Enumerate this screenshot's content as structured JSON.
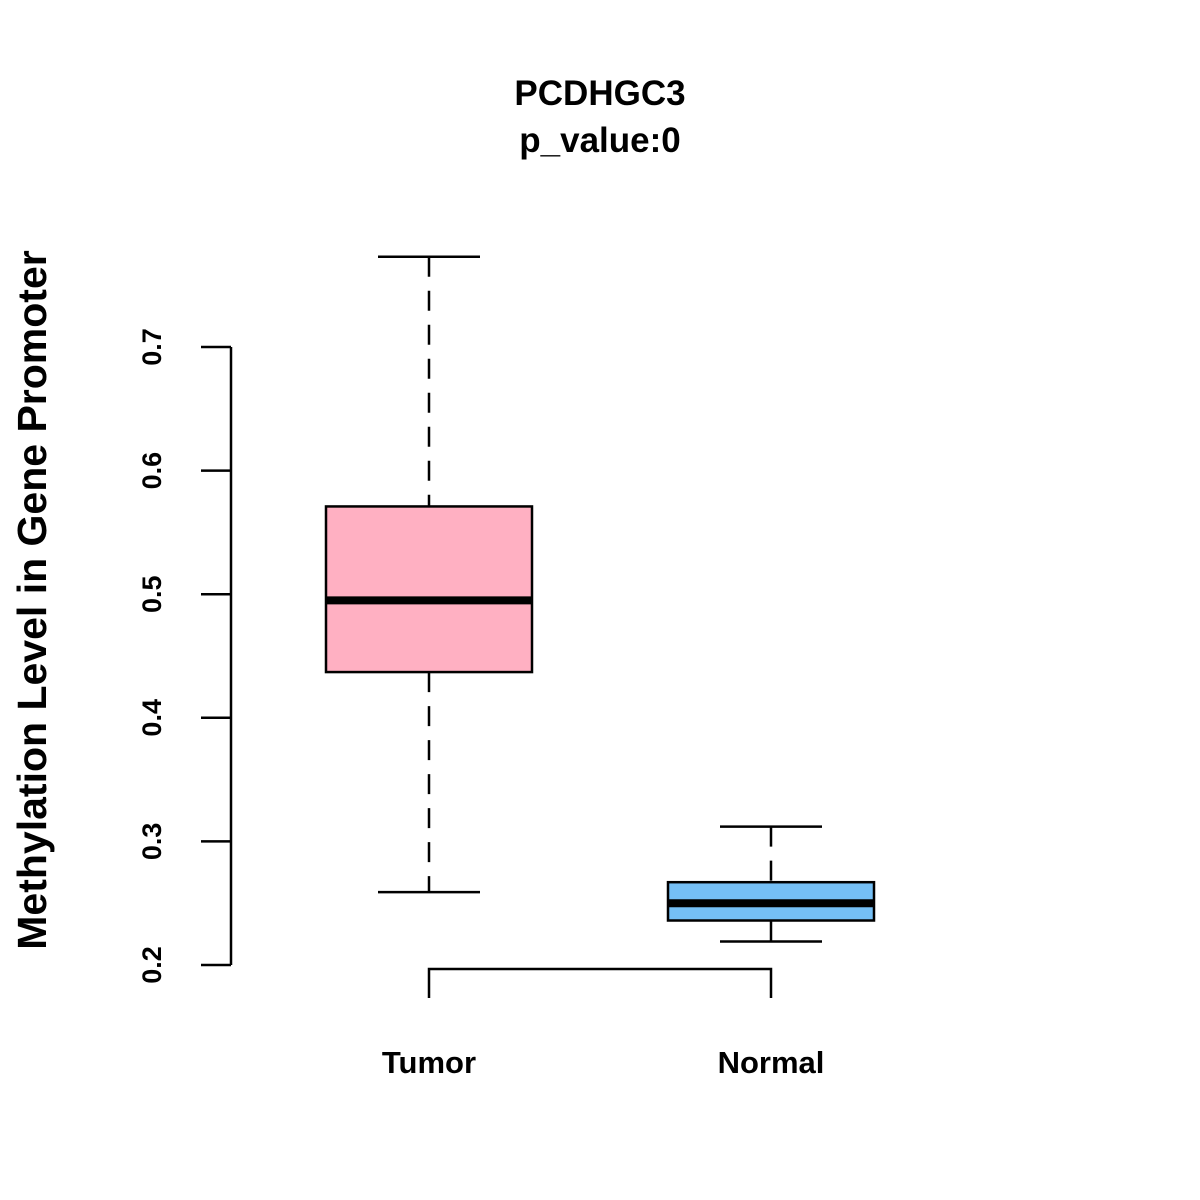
{
  "chart_data": {
    "type": "box",
    "title": "PCDHGC3",
    "subtitle": "p_value:0",
    "xlabel": "",
    "ylabel": "Methylation Level in Gene Promoter",
    "ylim": [
      0.2,
      0.7
    ],
    "yticks": [
      0.2,
      0.3,
      0.4,
      0.5,
      0.6,
      0.7
    ],
    "ytick_labels": [
      "0.2",
      "0.3",
      "0.4",
      "0.5",
      "0.6",
      "0.7"
    ],
    "grid": false,
    "categories": [
      "Tumor",
      "Normal"
    ],
    "series": [
      {
        "name": "Tumor",
        "color": "#FFB0C2",
        "whisker_low": 0.259,
        "q1": 0.437,
        "median": 0.495,
        "q3": 0.571,
        "whisker_high": 0.773
      },
      {
        "name": "Normal",
        "color": "#75BFF5",
        "whisker_low": 0.219,
        "q1": 0.236,
        "median": 0.25,
        "q3": 0.267,
        "whisker_high": 0.312
      }
    ],
    "annotations": [
      {
        "type": "comparison-bracket",
        "between": [
          "Tumor",
          "Normal"
        ]
      }
    ]
  }
}
